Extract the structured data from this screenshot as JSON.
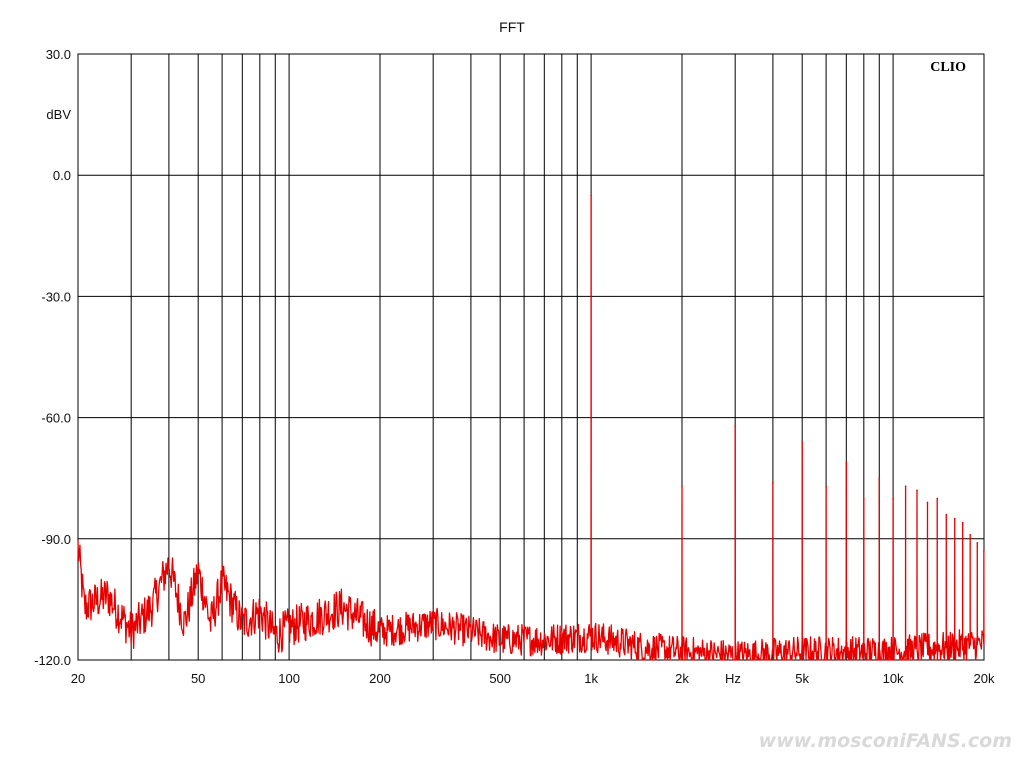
{
  "chart_data": {
    "type": "line",
    "title": "FFT",
    "xlabel": "Hz",
    "ylabel": "dBV",
    "x_scale": "log",
    "xlim": [
      20,
      20000
    ],
    "ylim": [
      -120,
      30
    ],
    "grid": true,
    "brand": "CLIO",
    "colors": {
      "series": "#e60000",
      "grid": "#000000",
      "background": "#ffffff"
    },
    "x_tick_labels": [
      {
        "value": 20,
        "label": "20"
      },
      {
        "value": 50,
        "label": "50"
      },
      {
        "value": 100,
        "label": "100"
      },
      {
        "value": 200,
        "label": "200"
      },
      {
        "value": 500,
        "label": "500"
      },
      {
        "value": 1000,
        "label": "1k"
      },
      {
        "value": 2000,
        "label": "2k"
      },
      {
        "value": 5000,
        "label": "5k"
      },
      {
        "value": 10000,
        "label": "10k"
      },
      {
        "value": 20000,
        "label": "20k"
      }
    ],
    "x_gridlines": [
      20,
      30,
      40,
      50,
      60,
      70,
      80,
      90,
      100,
      200,
      300,
      400,
      500,
      600,
      700,
      800,
      900,
      1000,
      2000,
      3000,
      4000,
      5000,
      6000,
      7000,
      8000,
      9000,
      10000,
      20000
    ],
    "y_tick_labels": [
      {
        "value": 30,
        "label": "30.0"
      },
      {
        "value": 0,
        "label": "0.0"
      },
      {
        "value": -30,
        "label": "-30.0"
      },
      {
        "value": -60,
        "label": "-60.0"
      },
      {
        "value": -90,
        "label": "-90.0"
      },
      {
        "value": -120,
        "label": "-120.0"
      }
    ],
    "series": [
      {
        "peaks": [
          {
            "x": 1000,
            "y": -5
          },
          {
            "x": 2000,
            "y": -77
          },
          {
            "x": 3000,
            "y": -62
          },
          {
            "x": 4000,
            "y": -76
          },
          {
            "x": 5000,
            "y": -66
          },
          {
            "x": 6000,
            "y": -77
          },
          {
            "x": 7000,
            "y": -71
          },
          {
            "x": 8000,
            "y": -80
          },
          {
            "x": 9000,
            "y": -75
          },
          {
            "x": 10000,
            "y": -80
          },
          {
            "x": 11000,
            "y": -77
          },
          {
            "x": 12000,
            "y": -78
          },
          {
            "x": 13000,
            "y": -81
          },
          {
            "x": 14000,
            "y": -80
          },
          {
            "x": 15000,
            "y": -84
          },
          {
            "x": 16000,
            "y": -85
          },
          {
            "x": 17000,
            "y": -86
          },
          {
            "x": 18000,
            "y": -89
          },
          {
            "x": 19000,
            "y": -91
          },
          {
            "x": 20000,
            "y": -93
          }
        ],
        "noise_floor": [
          {
            "x": 20,
            "y": -92
          },
          {
            "x": 21,
            "y": -107
          },
          {
            "x": 25,
            "y": -104
          },
          {
            "x": 30,
            "y": -113
          },
          {
            "x": 35,
            "y": -107
          },
          {
            "x": 40,
            "y": -96
          },
          {
            "x": 45,
            "y": -111
          },
          {
            "x": 50,
            "y": -98
          },
          {
            "x": 55,
            "y": -111
          },
          {
            "x": 60,
            "y": -101
          },
          {
            "x": 70,
            "y": -111
          },
          {
            "x": 80,
            "y": -108
          },
          {
            "x": 90,
            "y": -114
          },
          {
            "x": 100,
            "y": -112
          },
          {
            "x": 150,
            "y": -107
          },
          {
            "x": 200,
            "y": -113
          },
          {
            "x": 300,
            "y": -111
          },
          {
            "x": 400,
            "y": -113
          },
          {
            "x": 500,
            "y": -115
          },
          {
            "x": 700,
            "y": -115
          },
          {
            "x": 1000,
            "y": -114
          },
          {
            "x": 1500,
            "y": -117
          },
          {
            "x": 2000,
            "y": -118
          },
          {
            "x": 3000,
            "y": -119
          },
          {
            "x": 5000,
            "y": -118
          },
          {
            "x": 10000,
            "y": -118
          },
          {
            "x": 20000,
            "y": -116
          }
        ]
      }
    ]
  },
  "watermark": {
    "text": "www.mosconiFANS.com"
  }
}
